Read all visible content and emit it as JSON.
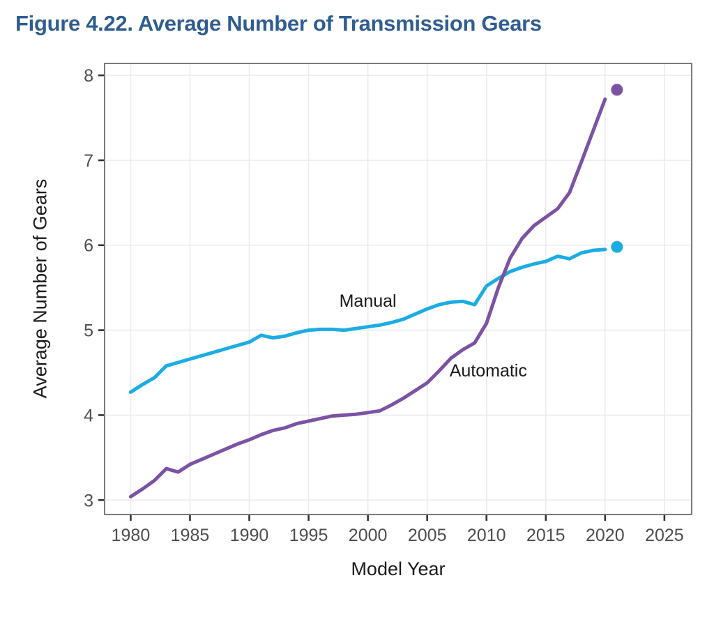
{
  "figure": {
    "title": "Figure 4.22. Average Number of Transmission Gears",
    "title_color": "#2F5D90"
  },
  "chart_data": {
    "type": "line",
    "title": "Figure 4.22. Average Number of Transmission Gears",
    "xlabel": "Model Year",
    "ylabel": "Average Number of Gears",
    "xlim": [
      1977.8,
      2027.3
    ],
    "ylim": [
      2.83,
      8.14
    ],
    "x_ticks": [
      1980,
      1985,
      1990,
      1995,
      2000,
      2005,
      2010,
      2015,
      2020,
      2025
    ],
    "y_ticks": [
      3,
      4,
      5,
      6,
      7,
      8
    ],
    "grid": true,
    "legend_position": "inline-annotations",
    "x": [
      1980,
      1981,
      1982,
      1983,
      1984,
      1985,
      1986,
      1987,
      1988,
      1989,
      1990,
      1991,
      1992,
      1993,
      1994,
      1995,
      1996,
      1997,
      1998,
      1999,
      2000,
      2001,
      2002,
      2003,
      2004,
      2005,
      2006,
      2007,
      2008,
      2009,
      2010,
      2011,
      2012,
      2013,
      2014,
      2015,
      2016,
      2017,
      2018,
      2019,
      2020
    ],
    "series": [
      {
        "name": "Manual",
        "color": "#1BACE4",
        "values": [
          4.27,
          4.36,
          4.44,
          4.58,
          4.62,
          4.66,
          4.7,
          4.74,
          4.78,
          4.82,
          4.86,
          4.94,
          4.91,
          4.93,
          4.97,
          5.0,
          5.01,
          5.01,
          5.0,
          5.02,
          5.04,
          5.06,
          5.09,
          5.13,
          5.19,
          5.25,
          5.3,
          5.33,
          5.34,
          5.3,
          5.52,
          5.61,
          5.69,
          5.74,
          5.78,
          5.81,
          5.87,
          5.84,
          5.91,
          5.94,
          5.95
        ],
        "final_point": {
          "x": 2021,
          "value": 5.98
        },
        "label": "Manual",
        "label_pos": {
          "x": 2000.0,
          "value": 5.34
        }
      },
      {
        "name": "Automatic",
        "color": "#7C52A4",
        "values": [
          3.04,
          3.13,
          3.23,
          3.37,
          3.33,
          3.42,
          3.48,
          3.54,
          3.6,
          3.66,
          3.71,
          3.77,
          3.82,
          3.85,
          3.9,
          3.93,
          3.96,
          3.99,
          4.0,
          4.01,
          4.03,
          4.05,
          4.12,
          4.2,
          4.29,
          4.38,
          4.52,
          4.67,
          4.77,
          4.85,
          5.08,
          5.5,
          5.85,
          6.08,
          6.23,
          6.33,
          6.43,
          6.62,
          6.98,
          7.35,
          7.72
        ],
        "final_point": {
          "x": 2021,
          "value": 7.83
        },
        "label": "Automatic",
        "label_pos": {
          "x": 2010.15,
          "value": 4.52
        }
      }
    ],
    "style": {
      "grid_color": "#EBEBEB",
      "border_color": "#7A7A7A",
      "tick_color": "#333333",
      "tick_label_color": "#4D4D4D",
      "annotation_color": "#1A1A1A",
      "line_width": 5,
      "dot_radius": 8.5
    }
  }
}
